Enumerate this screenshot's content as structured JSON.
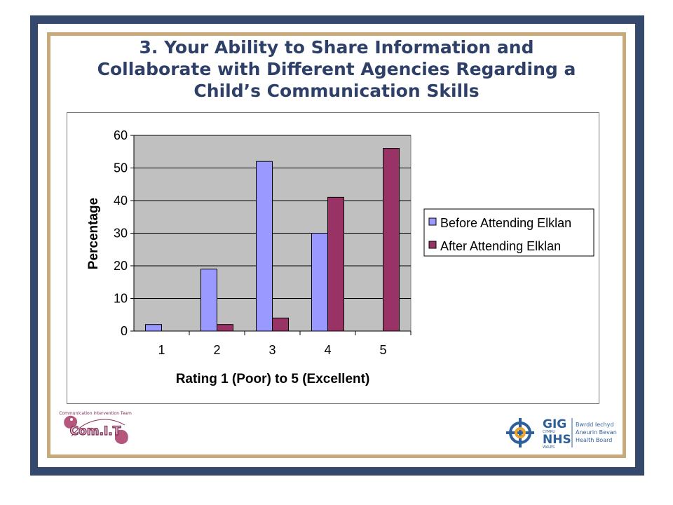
{
  "slide": {
    "title_lines": [
      "3. Your Ability to Share Information and",
      "Collaborate with Different Agencies Regarding a",
      "Child’s Communication Skills"
    ]
  },
  "chart_data": {
    "type": "bar",
    "categories": [
      "1",
      "2",
      "3",
      "4",
      "5"
    ],
    "series": [
      {
        "name": "Before Attending Elklan",
        "values": [
          2,
          19,
          52,
          30,
          0
        ],
        "color": "#9999ff"
      },
      {
        "name": "After Attending Elklan",
        "values": [
          0,
          2,
          4,
          41,
          56
        ],
        "color": "#993366"
      }
    ],
    "xlabel": "Rating 1 (Poor) to 5 (Excellent)",
    "ylabel": "Percentage",
    "ylim": [
      0,
      60
    ],
    "yticks": [
      "0",
      "10",
      "20",
      "30",
      "40",
      "50",
      "60"
    ],
    "grid": true,
    "plot_background": "#c0c0c0",
    "legend": "right"
  },
  "logos": {
    "comit": {
      "text": "Com.I.T",
      "arc_text": "Communication Intervention Team"
    },
    "nhs": {
      "gig": "GIG",
      "cymru": "CYMRU",
      "nhs": "NHS",
      "wales": "WALES",
      "board_lines": [
        "Bwrdd Iechyd",
        "Aneurin Bevan",
        "Health Board"
      ]
    }
  }
}
